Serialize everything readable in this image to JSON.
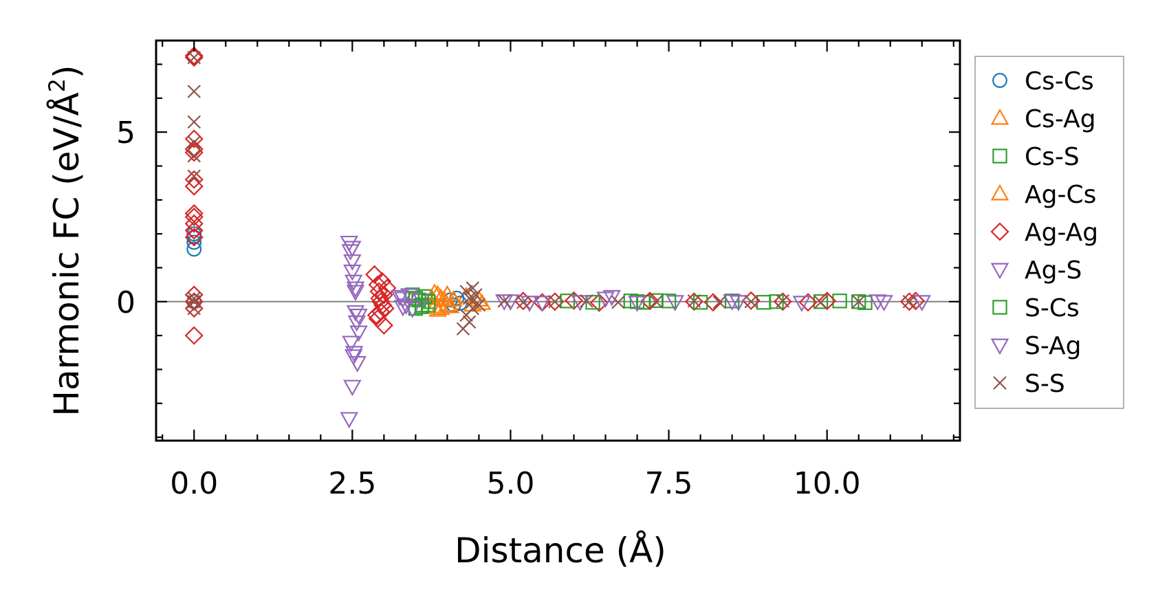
{
  "chart_data": {
    "type": "scatter",
    "title": "",
    "xlabel": "Distance (Å)",
    "ylabel_main": "Harmonic FC (eV/Å",
    "ylabel_sup": "2",
    "ylabel_close": ")",
    "xlim": [
      -0.6,
      12.1
    ],
    "ylim": [
      -4.1,
      7.7
    ],
    "xticks": [
      0.0,
      2.5,
      5.0,
      7.5,
      10.0
    ],
    "xtick_labels": [
      "0.0",
      "2.5",
      "5.0",
      "7.5",
      "10.0"
    ],
    "yticks": [
      0,
      5
    ],
    "ytick_labels": [
      "0",
      "5"
    ],
    "grid": false,
    "zero_line": 0,
    "legend_position": "outside-right",
    "series": [
      {
        "name": "Cs-Cs",
        "marker": "circle",
        "color": "#1f77b4",
        "x": [
          0,
          0,
          0,
          0,
          0,
          4.05,
          4.1,
          4.15,
          4.2
        ],
        "y": [
          1.55,
          1.75,
          1.9,
          2.0,
          0.0,
          0.05,
          -0.1,
          0.1,
          -0.05
        ]
      },
      {
        "name": "Cs-Ag",
        "marker": "triangle-up",
        "color": "#ff7f0e",
        "x": [
          3.75,
          3.8,
          3.85,
          3.9,
          3.95,
          4.0,
          4.3,
          4.4,
          4.5,
          4.55
        ],
        "y": [
          0.1,
          -0.15,
          0.2,
          -0.2,
          0.05,
          -0.1,
          0.15,
          -0.1,
          0.05,
          -0.05
        ]
      },
      {
        "name": "Cs-S",
        "marker": "square",
        "color": "#2ca02c",
        "x": [
          3.45,
          3.5,
          3.55,
          3.6,
          3.65,
          3.7,
          6.9,
          7.1,
          7.3,
          8.5,
          9.0,
          9.9,
          10.2,
          10.6
        ],
        "y": [
          0.2,
          -0.2,
          0.05,
          -0.15,
          0.15,
          -0.1,
          0.02,
          -0.02,
          0.03,
          0.02,
          -0.02,
          0.0,
          0.02,
          -0.03
        ]
      },
      {
        "name": "Ag-Cs",
        "marker": "triangle-up",
        "color": "#ff7f0e",
        "x": [
          3.8,
          3.85,
          3.9,
          4.0,
          4.05,
          4.1
        ],
        "y": [
          0.25,
          -0.25,
          0.1,
          0.2,
          -0.15,
          0.05
        ]
      },
      {
        "name": "Ag-Ag",
        "marker": "diamond",
        "color": "#d62728",
        "x": [
          0,
          0,
          0,
          0,
          0,
          0,
          0,
          0,
          0,
          0,
          0,
          0,
          0,
          0,
          0,
          0,
          2.85,
          2.9,
          2.9,
          2.92,
          2.95,
          2.95,
          2.97,
          3.0,
          3.0,
          3.02,
          3.05,
          2.88,
          2.93,
          2.98,
          5.2,
          5.5,
          5.7,
          6.0,
          6.4,
          7.2,
          7.9,
          8.2,
          8.8,
          9.3,
          9.7,
          10.0,
          11.3,
          11.4
        ],
        "y": [
          7.25,
          7.2,
          4.8,
          4.5,
          4.4,
          3.6,
          3.4,
          2.6,
          2.5,
          2.3,
          2.1,
          1.9,
          0.2,
          0.0,
          -0.2,
          -1.0,
          0.8,
          0.5,
          -0.5,
          0.3,
          -0.3,
          0.0,
          0.6,
          -0.7,
          0.2,
          -0.2,
          0.4,
          -0.4,
          0.1,
          -0.1,
          0.02,
          -0.02,
          0.0,
          0.03,
          -0.03,
          0.02,
          0.0,
          -0.02,
          0.03,
          0.0,
          -0.02,
          0.02,
          0.0,
          0.02
        ]
      },
      {
        "name": "Ag-S",
        "marker": "triangle-down",
        "color": "#9467bd",
        "x": [
          2.45,
          2.47,
          2.5,
          2.5,
          2.52,
          2.55,
          2.55,
          2.57,
          2.6,
          2.48,
          2.53,
          2.58,
          2.5,
          2.45,
          3.3,
          3.35,
          3.4,
          3.45,
          3.6,
          4.9,
          5.5,
          6.5,
          7.6,
          8.5,
          9.6,
          10.9
        ],
        "y": [
          1.75,
          1.5,
          1.2,
          0.9,
          0.6,
          0.3,
          -0.3,
          -0.6,
          -0.9,
          -1.2,
          -1.5,
          -1.8,
          -2.5,
          -3.45,
          0.1,
          -0.1,
          0.2,
          -0.2,
          0.05,
          0.02,
          -0.02,
          0.1,
          0.0,
          0.02,
          -0.02,
          0.0
        ]
      },
      {
        "name": "S-Cs",
        "marker": "square",
        "color": "#2ca02c",
        "x": [
          3.5,
          3.6,
          3.7,
          5.9,
          6.3,
          7.0,
          7.5,
          8.0,
          9.2,
          10.5
        ],
        "y": [
          0.1,
          -0.1,
          0.0,
          0.02,
          -0.02,
          0.0,
          0.02,
          -0.02,
          0.0,
          0.0
        ]
      },
      {
        "name": "S-Ag",
        "marker": "triangle-down",
        "color": "#9467bd",
        "x": [
          2.5,
          2.55,
          2.6,
          2.52,
          3.25,
          3.3,
          5.0,
          5.3,
          6.1,
          6.6,
          7.0,
          8.6,
          10.8,
          11.5
        ],
        "y": [
          1.6,
          0.4,
          -0.4,
          -1.6,
          0.15,
          -0.15,
          0.02,
          -0.02,
          0.0,
          0.15,
          -0.02,
          0.0,
          0.02,
          0.0
        ]
      },
      {
        "name": "S-S",
        "marker": "x",
        "color": "#8c564b",
        "x": [
          0,
          0,
          0,
          0,
          0,
          0,
          0,
          0,
          0,
          4.25,
          4.3,
          4.3,
          4.35,
          4.4,
          4.4,
          4.45,
          4.5,
          4.35,
          4.4,
          4.9,
          5.2,
          5.7,
          6.2,
          6.7,
          7.3,
          7.9,
          8.3,
          8.8,
          9.3,
          9.9,
          10.5,
          11.3
        ],
        "y": [
          7.2,
          6.2,
          5.3,
          4.7,
          4.3,
          3.7,
          0.1,
          0.0,
          -0.2,
          -0.8,
          0.3,
          -0.4,
          0.1,
          0.4,
          -0.2,
          0.2,
          -0.1,
          -0.6,
          0.0,
          0.02,
          -0.02,
          0.0,
          0.02,
          -0.02,
          0.0,
          0.02,
          -0.02,
          0.0,
          0.02,
          -0.02,
          0.0,
          0.0
        ]
      }
    ]
  }
}
